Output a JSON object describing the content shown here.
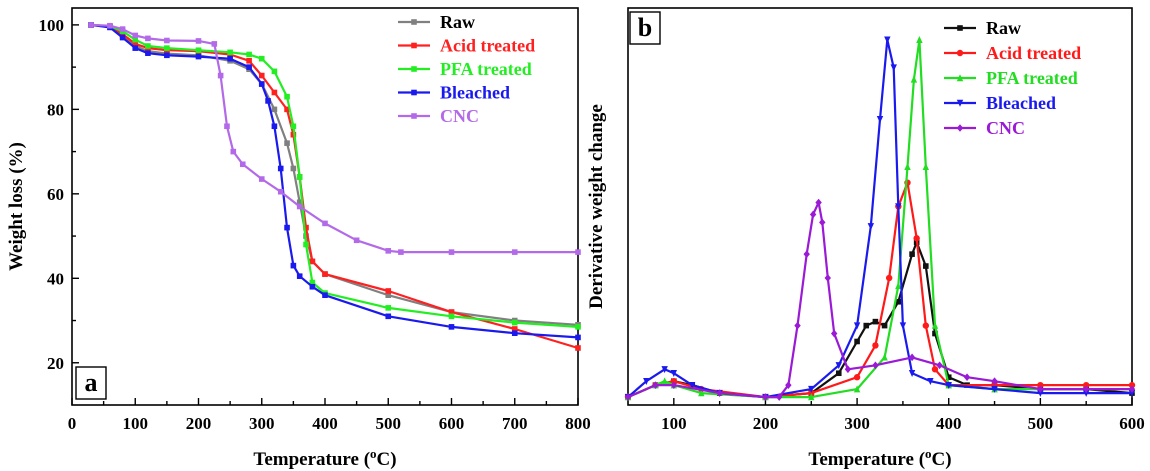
{
  "chart_data": [
    {
      "panel": "a",
      "type": "line",
      "xlabel": "Temperature (oC)",
      "xlabel_parts": {
        "main": "Temperature (",
        "sup": "o",
        "rest": "C)"
      },
      "ylabel": "Weight loss (%)",
      "xlim": [
        0,
        800
      ],
      "ylim": [
        10,
        104
      ],
      "xticks": [
        0,
        100,
        200,
        300,
        400,
        500,
        600,
        700,
        800
      ],
      "yticks": [
        20,
        40,
        60,
        80,
        100
      ],
      "legend_position": "top-right",
      "series": [
        {
          "name": "Raw",
          "color": "#808080",
          "marker": "square",
          "x": [
            30,
            60,
            80,
            100,
            120,
            150,
            200,
            250,
            280,
            300,
            320,
            340,
            350,
            360,
            370,
            380,
            400,
            500,
            600,
            700,
            800
          ],
          "y": [
            100,
            99.6,
            97.5,
            95,
            93.8,
            93.2,
            92.8,
            91.5,
            89.5,
            86,
            80,
            72,
            66,
            58,
            50,
            44,
            41,
            36,
            32,
            30,
            29
          ]
        },
        {
          "name": "Acid treated",
          "color": "#ff2020",
          "marker": "square",
          "x": [
            30,
            60,
            80,
            100,
            120,
            150,
            200,
            250,
            280,
            300,
            320,
            340,
            350,
            360,
            370,
            380,
            400,
            500,
            600,
            700,
            800
          ],
          "y": [
            100,
            99.5,
            97.8,
            95.5,
            94.5,
            94,
            93.8,
            93,
            91.5,
            88,
            84,
            80,
            74,
            64,
            52,
            44,
            41,
            37,
            32,
            28,
            23.5
          ]
        },
        {
          "name": "PFA treated",
          "color": "#22ee22",
          "marker": "square",
          "x": [
            30,
            60,
            80,
            100,
            120,
            150,
            200,
            250,
            280,
            300,
            320,
            340,
            350,
            360,
            370,
            380,
            400,
            500,
            600,
            700,
            800
          ],
          "y": [
            100,
            99.7,
            98.5,
            96.5,
            95,
            94.5,
            94,
            93.5,
            93,
            92,
            89,
            83,
            76,
            64,
            48,
            39,
            36.5,
            33,
            31,
            29.5,
            28.5
          ]
        },
        {
          "name": "Bleached",
          "color": "#1a1aee",
          "marker": "square",
          "x": [
            30,
            60,
            80,
            100,
            120,
            150,
            200,
            250,
            280,
            300,
            310,
            320,
            330,
            340,
            350,
            360,
            380,
            400,
            500,
            600,
            700,
            800
          ],
          "y": [
            100,
            99.4,
            97,
            94.5,
            93.3,
            92.8,
            92.5,
            92,
            90,
            86,
            82,
            76,
            66,
            52,
            43,
            40.5,
            38,
            36,
            31,
            28.5,
            27,
            26
          ]
        },
        {
          "name": "CNC",
          "color": "#b36ae8",
          "marker": "square",
          "x": [
            30,
            60,
            80,
            100,
            120,
            150,
            200,
            225,
            235,
            245,
            255,
            270,
            300,
            330,
            360,
            400,
            450,
            500,
            520,
            600,
            700,
            800
          ],
          "y": [
            100,
            99.8,
            99,
            97.5,
            96.8,
            96.3,
            96.2,
            95.5,
            88,
            76,
            70,
            67,
            63.5,
            60.5,
            57,
            53,
            49,
            46.5,
            46.2,
            46.2,
            46.2,
            46.2
          ]
        }
      ]
    },
    {
      "panel": "b",
      "type": "line",
      "xlabel": "Temperature (oC)",
      "xlabel_parts": {
        "main": "Temperature (",
        "sup": "o",
        "rest": "C)"
      },
      "ylabel": "Derivative weight change",
      "xlim": [
        50,
        600
      ],
      "ylim": [
        0,
        1
      ],
      "xticks": [
        100,
        200,
        300,
        400,
        500,
        600
      ],
      "yticks": [],
      "legend_position": "top-right",
      "series": [
        {
          "name": "Raw",
          "color": "#111111",
          "marker": "square",
          "x": [
            50,
            80,
            100,
            120,
            150,
            200,
            250,
            280,
            300,
            310,
            320,
            330,
            345,
            360,
            365,
            375,
            385,
            400,
            420,
            450,
            500,
            550,
            600
          ],
          "y": [
            0.02,
            0.05,
            0.06,
            0.05,
            0.03,
            0.02,
            0.03,
            0.08,
            0.16,
            0.2,
            0.21,
            0.2,
            0.26,
            0.38,
            0.41,
            0.35,
            0.18,
            0.07,
            0.05,
            0.05,
            0.04,
            0.04,
            0.03
          ]
        },
        {
          "name": "Acid treated",
          "color": "#ff1a1a",
          "marker": "circle",
          "x": [
            50,
            80,
            100,
            130,
            200,
            250,
            300,
            320,
            335,
            345,
            355,
            365,
            375,
            385,
            400,
            450,
            500,
            550,
            600
          ],
          "y": [
            0.02,
            0.05,
            0.06,
            0.04,
            0.02,
            0.03,
            0.07,
            0.15,
            0.32,
            0.5,
            0.56,
            0.42,
            0.2,
            0.09,
            0.05,
            0.05,
            0.05,
            0.05,
            0.05
          ]
        },
        {
          "name": "PFA treated",
          "color": "#22dd22",
          "marker": "triangle",
          "x": [
            50,
            80,
            90,
            100,
            130,
            200,
            250,
            300,
            330,
            345,
            355,
            362,
            368,
            375,
            385,
            400,
            450,
            500,
            550,
            600
          ],
          "y": [
            0.02,
            0.05,
            0.06,
            0.05,
            0.03,
            0.02,
            0.02,
            0.04,
            0.12,
            0.3,
            0.6,
            0.82,
            0.92,
            0.6,
            0.2,
            0.05,
            0.04,
            0.04,
            0.04,
            0.04
          ]
        },
        {
          "name": "Bleached",
          "color": "#1a1aee",
          "marker": "triangle-down",
          "x": [
            50,
            70,
            90,
            100,
            120,
            150,
            200,
            250,
            280,
            300,
            315,
            325,
            333,
            340,
            345,
            350,
            360,
            380,
            400,
            450,
            500,
            550,
            600
          ],
          "y": [
            0.02,
            0.06,
            0.09,
            0.08,
            0.05,
            0.03,
            0.02,
            0.04,
            0.1,
            0.2,
            0.45,
            0.72,
            0.92,
            0.85,
            0.5,
            0.2,
            0.08,
            0.06,
            0.05,
            0.04,
            0.03,
            0.03,
            0.03
          ]
        },
        {
          "name": "CNC",
          "color": "#9a1ad6",
          "marker": "diamond",
          "x": [
            50,
            80,
            100,
            150,
            200,
            215,
            225,
            235,
            245,
            252,
            258,
            262,
            268,
            275,
            290,
            320,
            360,
            390,
            420,
            450,
            500,
            550,
            600
          ],
          "y": [
            0.02,
            0.05,
            0.05,
            0.03,
            0.02,
            0.02,
            0.05,
            0.2,
            0.38,
            0.48,
            0.51,
            0.46,
            0.32,
            0.18,
            0.09,
            0.1,
            0.12,
            0.1,
            0.07,
            0.06,
            0.04,
            0.04,
            0.04
          ]
        }
      ]
    }
  ]
}
